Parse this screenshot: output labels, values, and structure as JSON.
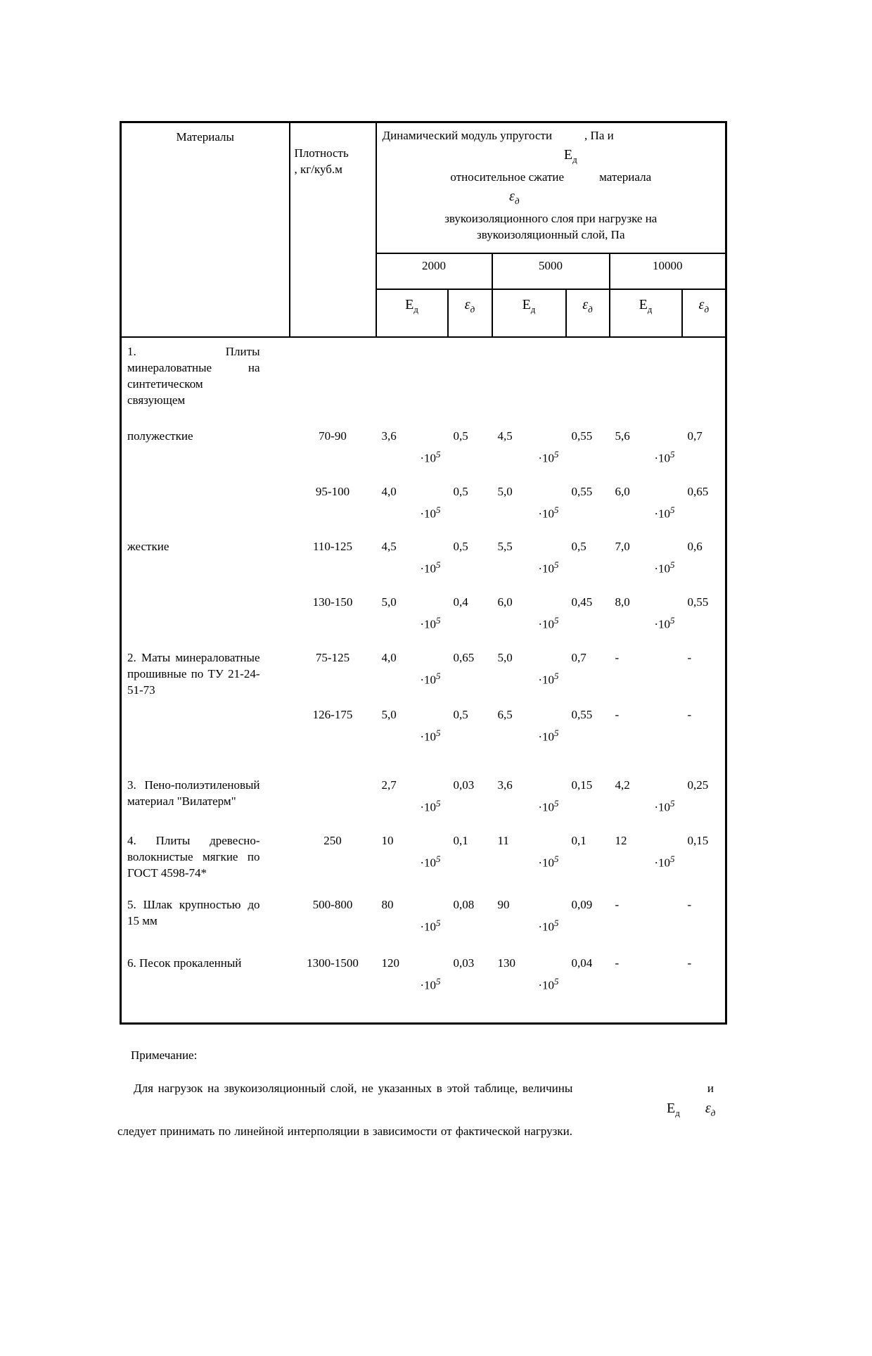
{
  "symbols": {
    "E": "Е",
    "eps": "ε",
    "sub": "д"
  },
  "table": {
    "header": {
      "materials": "Материалы",
      "density": "Плотность\n, кг/куб.м",
      "modulus_text": "Динамический модуль упругости",
      "modulus_units": ", Па и",
      "compression_text": "относительное сжатие",
      "material_text": "материала",
      "load_line1": "звукоизоляционного слоя при нагрузке на",
      "load_line2": "звукоизоляционный слой, Па"
    },
    "loads": [
      "2000",
      "5000",
      "10000"
    ],
    "pow_prefix": "·10",
    "pow_exp": "5",
    "dash": "-",
    "rows": [
      {
        "material": "1. Плиты минераловатные на синтетическом связующем",
        "kind": "item",
        "density": "",
        "values": [
          "",
          "",
          "",
          "",
          "",
          ""
        ]
      },
      {
        "material": "полужесткие",
        "kind": "sub",
        "density": "70-90",
        "values": [
          "3,6",
          "0,5",
          "4,5",
          "0,55",
          "5,6",
          "0,7"
        ]
      },
      {
        "material": "",
        "kind": "sub",
        "density": "95-100",
        "values": [
          "4,0",
          "0,5",
          "5,0",
          "0,55",
          "6,0",
          "0,65"
        ]
      },
      {
        "material": "жесткие",
        "kind": "sub",
        "density": "110-125",
        "values": [
          "4,5",
          "0,5",
          "5,5",
          "0,5",
          "7,0",
          "0,6"
        ]
      },
      {
        "material": "",
        "kind": "sub",
        "density": "130-150",
        "values": [
          "5,0",
          "0,4",
          "6,0",
          "0,45",
          "8,0",
          "0,55"
        ]
      },
      {
        "material": "2. Маты минераловатные прошивные по ТУ 21-24-51-73",
        "kind": "item",
        "density": "75-125",
        "values": [
          "4,0",
          "0,65",
          "5,0",
          "0,7",
          "-",
          "-"
        ]
      },
      {
        "material": "",
        "kind": "sub",
        "density": "126-175",
        "values": [
          "5,0",
          "0,5",
          "6,5",
          "0,55",
          "-",
          "-"
        ]
      },
      {
        "material": "3. Пено-полиэтиленовый материал \"Вилатерм\"",
        "kind": "item",
        "density": "",
        "values": [
          "2,7",
          "0,03",
          "3,6",
          "0,15",
          "4,2",
          "0,25"
        ]
      },
      {
        "material": "4. Плиты древесно-волокнистые мягкие по ГОСТ 4598-74*",
        "kind": "item",
        "density": "250",
        "values": [
          "10",
          "0,1",
          "11",
          "0,1",
          "12",
          "0,15"
        ]
      },
      {
        "material": "5. Шлак крупностью до 15 мм",
        "kind": "item",
        "density": "500-800",
        "values": [
          "80",
          "0,08",
          "90",
          "0,09",
          "-",
          "-"
        ]
      },
      {
        "material": "6. Песок прокаленный",
        "kind": "item",
        "density": "1300-1500",
        "values": [
          "120",
          "0,03",
          "130",
          "0,04",
          "-",
          "-"
        ]
      }
    ]
  },
  "note": {
    "label": "Примечание:",
    "line1": "Для нагрузок на звукоизоляционный слой, не указанных в этой таблице, величины",
    "line1_end": "и",
    "line2": "следует принимать по линейной интерполяции в зависимости от фактической нагрузки."
  }
}
